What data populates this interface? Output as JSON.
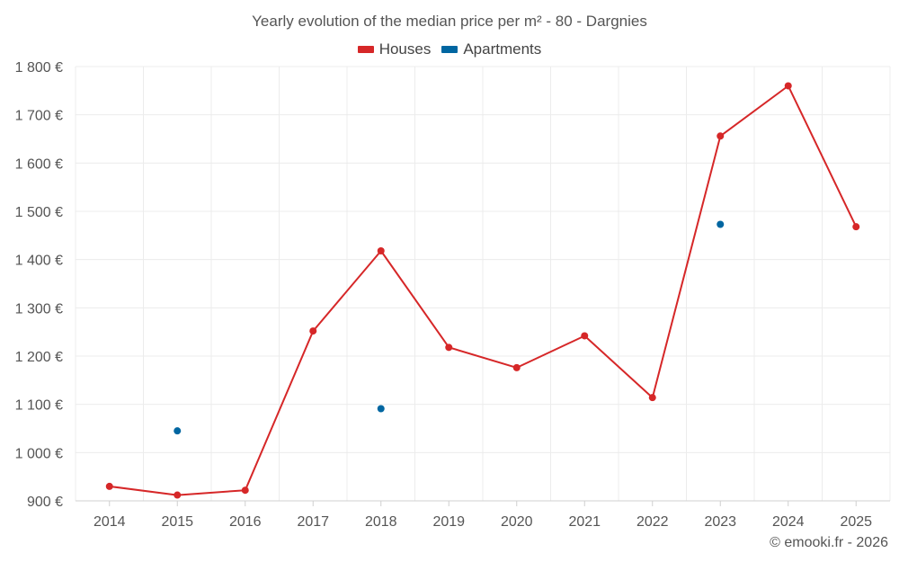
{
  "chart_data": {
    "type": "line",
    "title": "Yearly evolution of the median price per m² - 80 - Dargnies",
    "categories": [
      "2014",
      "2015",
      "2016",
      "2017",
      "2018",
      "2019",
      "2020",
      "2021",
      "2022",
      "2023",
      "2024",
      "2025"
    ],
    "ylim": [
      900,
      1800
    ],
    "yticks": [
      900,
      1000,
      1100,
      1200,
      1300,
      1400,
      1500,
      1600,
      1700,
      1800
    ],
    "ytick_labels": [
      "900 €",
      "1 000 €",
      "1 100 €",
      "1 200 €",
      "1 300 €",
      "1 400 €",
      "1 500 €",
      "1 600 €",
      "1 700 €",
      "1 800 €"
    ],
    "grid": true,
    "legend_position": "top-center",
    "series": [
      {
        "name": "Houses",
        "color": "#d62728",
        "mode": "line+markers",
        "values": [
          930,
          912,
          922,
          1252,
          1418,
          1218,
          1176,
          1242,
          1114,
          1656,
          1760,
          1468
        ]
      },
      {
        "name": "Apartments",
        "color": "#0066a1",
        "mode": "markers",
        "values": [
          null,
          1045,
          null,
          null,
          1091,
          null,
          null,
          null,
          null,
          1473,
          null,
          null
        ]
      }
    ]
  },
  "credit": "© emooki.fr - 2026"
}
